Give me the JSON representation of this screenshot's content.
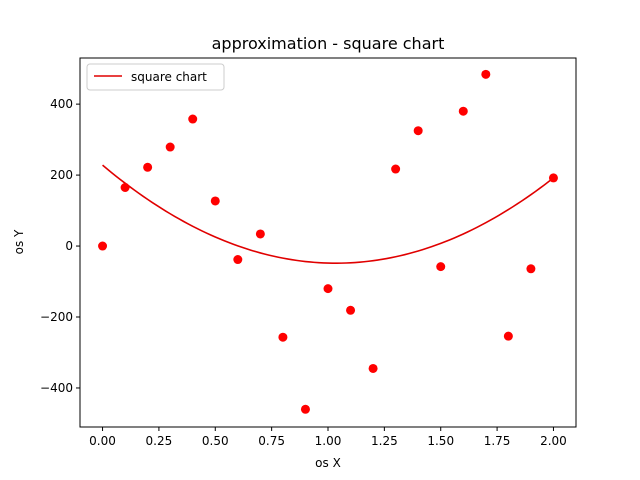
{
  "chart_data": {
    "type": "scatter",
    "title": "approximation - square chart",
    "xlabel": "os X",
    "ylabel": "os Y",
    "xlim": [
      -0.1,
      2.1
    ],
    "ylim": [
      -510,
      530
    ],
    "xticks": [
      0.0,
      0.25,
      0.5,
      0.75,
      1.0,
      1.25,
      1.5,
      1.75,
      2.0
    ],
    "xtick_labels": [
      "0.00",
      "0.25",
      "0.50",
      "0.75",
      "1.00",
      "1.25",
      "1.50",
      "1.75",
      "2.00"
    ],
    "yticks": [
      -400,
      -200,
      0,
      200,
      400
    ],
    "ytick_labels": [
      "−400",
      "−200",
      "0",
      "200",
      "400"
    ],
    "grid": false,
    "legend": {
      "placement": "top-left",
      "entries": [
        "square chart"
      ]
    },
    "colors": {
      "points": "#ff0000",
      "curve": "#e00000"
    },
    "points": {
      "x": [
        0.0,
        0.1,
        0.2,
        0.3,
        0.4,
        0.5,
        0.6,
        0.7,
        0.8,
        0.9,
        1.0,
        1.1,
        1.2,
        1.3,
        1.4,
        1.5,
        1.6,
        1.7,
        1.8,
        1.9,
        2.0
      ],
      "y": [
        0,
        165,
        222,
        279,
        358,
        127,
        -38,
        34,
        -257,
        -460,
        -120,
        -181,
        -345,
        217,
        325,
        -58,
        380,
        484,
        -254,
        -64,
        192
      ]
    },
    "fit": {
      "name": "square chart",
      "coefficients": [
        258,
        -534,
        228
      ]
    }
  }
}
